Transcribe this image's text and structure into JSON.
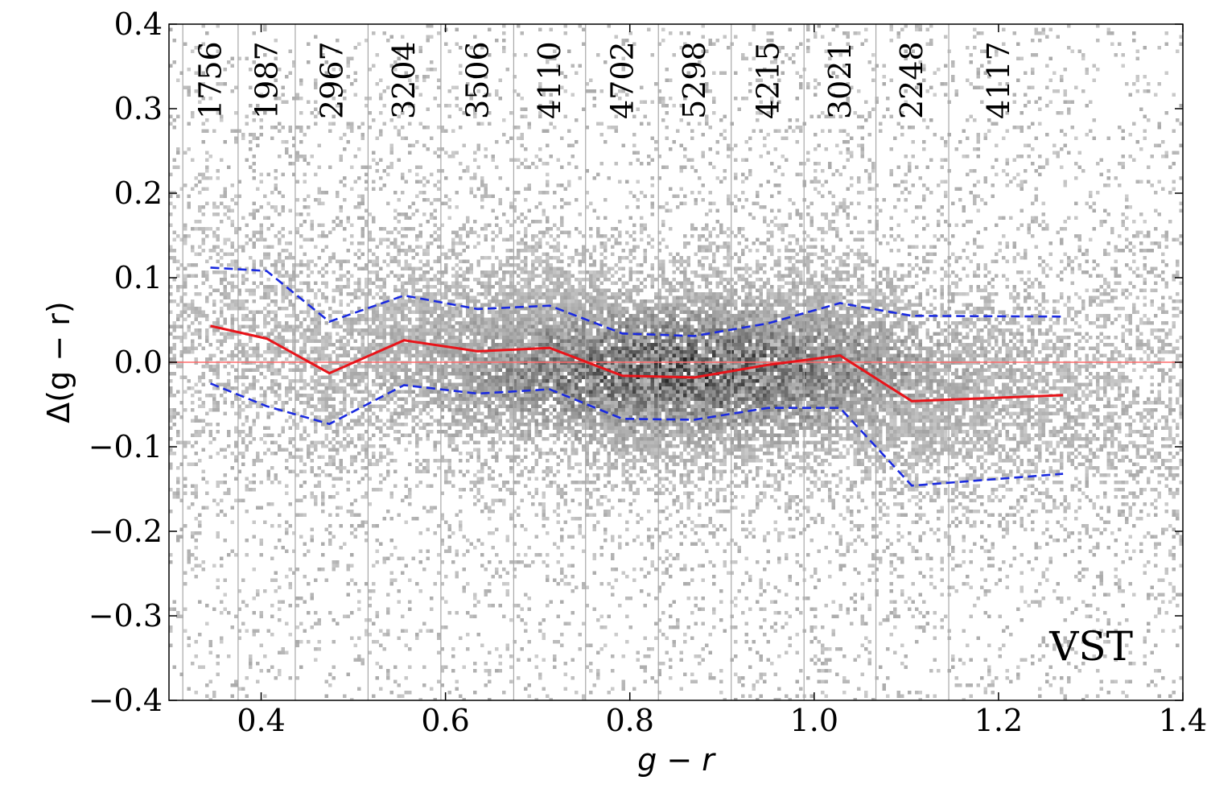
{
  "chart_data": {
    "type": "scatter",
    "title": "",
    "xlabel": "g − r",
    "ylabel": "Δ(g − r)",
    "xlim": [
      0.3,
      1.4
    ],
    "ylim": [
      -0.4,
      0.4
    ],
    "x_ticks": [
      0.4,
      0.6,
      0.8,
      1.0,
      1.2,
      1.4
    ],
    "x_tick_labels": [
      "0.4",
      "0.6",
      "0.8",
      "1.0",
      "1.2",
      "1.4"
    ],
    "y_ticks": [
      -0.4,
      -0.3,
      -0.2,
      -0.1,
      0.0,
      0.1,
      0.2,
      0.3,
      0.4
    ],
    "y_tick_labels": [
      "−0.4",
      "−0.3",
      "−0.2",
      "−0.1",
      "0.0",
      "0.1",
      "0.2",
      "0.3",
      "0.4"
    ],
    "bin_edges": [
      0.315,
      0.375,
      0.437,
      0.516,
      0.595,
      0.674,
      0.752,
      0.831,
      0.91,
      0.989,
      1.067,
      1.146
    ],
    "bin_counts": [
      "1756",
      "1987",
      "2967",
      "3204",
      "3506",
      "4110",
      "4702",
      "5298",
      "4215",
      "3021",
      "2248",
      "4117"
    ],
    "bin_count_x": [
      0.345,
      0.406,
      0.477,
      0.555,
      0.635,
      0.713,
      0.792,
      0.87,
      0.95,
      1.028,
      1.106,
      1.2
    ],
    "zero_line": {
      "y": 0.0,
      "color": "#ff6b6b"
    },
    "series": [
      {
        "kind": "median",
        "style": "solid",
        "color": "#e8141a",
        "x": [
          0.345,
          0.406,
          0.474,
          0.555,
          0.635,
          0.713,
          0.792,
          0.87,
          0.95,
          1.028,
          1.106,
          1.27
        ],
        "y": [
          0.043,
          0.028,
          -0.013,
          0.026,
          0.013,
          0.017,
          -0.016,
          -0.018,
          -0.003,
          0.008,
          -0.046,
          -0.039
        ]
      },
      {
        "kind": "upper",
        "style": "dashed",
        "color": "#1a2ae0",
        "x": [
          0.345,
          0.406,
          0.474,
          0.555,
          0.635,
          0.713,
          0.792,
          0.87,
          0.95,
          1.028,
          1.106,
          1.27
        ],
        "y": [
          0.112,
          0.108,
          0.048,
          0.079,
          0.063,
          0.067,
          0.034,
          0.031,
          0.046,
          0.07,
          0.055,
          0.054
        ]
      },
      {
        "kind": "lower",
        "style": "dashed",
        "color": "#1a2ae0",
        "x": [
          0.345,
          0.406,
          0.474,
          0.555,
          0.635,
          0.713,
          0.792,
          0.87,
          0.95,
          1.028,
          1.106,
          1.27
        ],
        "y": [
          -0.025,
          -0.052,
          -0.073,
          -0.027,
          -0.037,
          -0.032,
          -0.067,
          -0.068,
          -0.054,
          -0.054,
          -0.146,
          -0.132
        ]
      }
    ],
    "density": {
      "shown": "grayscale 2D histogram of individual stars",
      "peak_x": 0.86,
      "peak_y": -0.01
    },
    "annotations": [
      {
        "text": "VST",
        "position": "bottom-right"
      }
    ],
    "grid": false,
    "legend": "none"
  }
}
